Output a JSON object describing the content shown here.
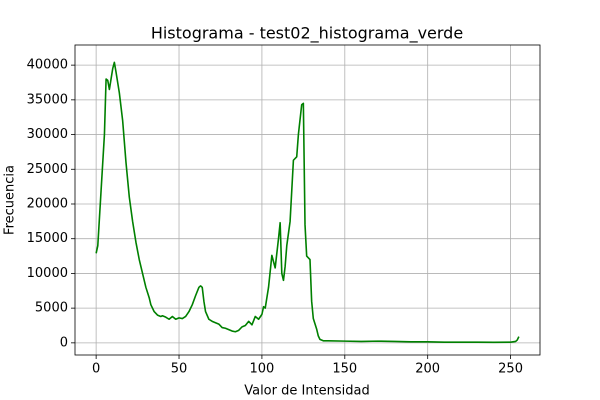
{
  "chart_data": {
    "type": "line",
    "title": "Histograma - test02_histograma_verde",
    "x_label": "Valor de Intensidad",
    "y_label": "Frecuencia",
    "xlim": [
      -12.75,
      267.75
    ],
    "ylim": [
      -1750,
      42900
    ],
    "xticks": [
      0,
      50,
      100,
      150,
      200,
      250
    ],
    "yticks": [
      0,
      5000,
      10000,
      15000,
      20000,
      25000,
      30000,
      35000,
      40000
    ],
    "grid": true,
    "series": [
      {
        "color": "#008000",
        "x": [
          0,
          1,
          3,
          5,
          6,
          7,
          8,
          9,
          10,
          11,
          12,
          14,
          16,
          18,
          20,
          22,
          24,
          26,
          28,
          30,
          32,
          33,
          35,
          37,
          39,
          40,
          42,
          44,
          46,
          48,
          50,
          52,
          54,
          56,
          58,
          60,
          62,
          63,
          64,
          65,
          66,
          68,
          70,
          72,
          74,
          76,
          78,
          80,
          82,
          84,
          86,
          88,
          90,
          92,
          94,
          96,
          98,
          100,
          101,
          102,
          104,
          106,
          108,
          110,
          111,
          112,
          113,
          114,
          115,
          117,
          119,
          121,
          122,
          124,
          125,
          126,
          127,
          129,
          130,
          131,
          133,
          134,
          135,
          137,
          140,
          150,
          160,
          170,
          180,
          190,
          200,
          210,
          220,
          230,
          240,
          250,
          253,
          254,
          255
        ],
        "values": [
          12900,
          14000,
          22000,
          30000,
          38000,
          37800,
          36500,
          38000,
          39500,
          40400,
          39000,
          36000,
          32000,
          26000,
          21000,
          17500,
          14500,
          12000,
          10000,
          8000,
          6500,
          5500,
          4500,
          4000,
          3800,
          3900,
          3700,
          3400,
          3800,
          3400,
          3600,
          3500,
          3800,
          4500,
          5500,
          6800,
          8000,
          8200,
          8000,
          6000,
          4500,
          3400,
          3100,
          2900,
          2700,
          2200,
          2100,
          1900,
          1700,
          1600,
          1800,
          2300,
          2500,
          3100,
          2600,
          3800,
          3400,
          4100,
          5200,
          5000,
          8000,
          12600,
          10800,
          15000,
          17300,
          10000,
          9000,
          11000,
          14000,
          17500,
          26300,
          26800,
          30000,
          34300,
          34500,
          17000,
          12500,
          12000,
          6000,
          3500,
          2000,
          1000,
          500,
          300,
          300,
          250,
          200,
          250,
          200,
          150,
          150,
          100,
          100,
          100,
          80,
          100,
          200,
          400,
          900
        ]
      }
    ]
  }
}
